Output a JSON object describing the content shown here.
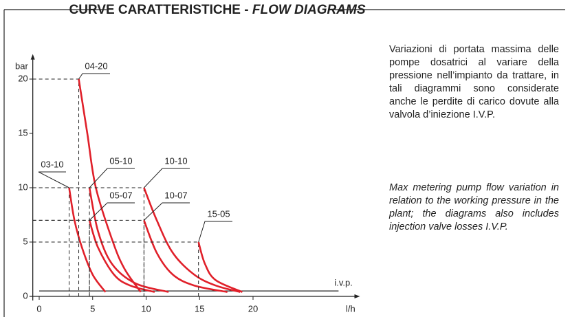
{
  "chart_data": {
    "type": "line",
    "title": "CURVE CARATTERISTICHE -",
    "title_italic": "FLOW DIAGRAMS",
    "y_label": "bar",
    "x_label": "l/h",
    "xlim": [
      -0.6,
      30
    ],
    "ylim": [
      0,
      22.3
    ],
    "xticks": [
      0,
      5,
      10,
      15,
      20
    ],
    "yticks": [
      0,
      5,
      10,
      15,
      20
    ],
    "reference_line": {
      "label": "i.v.p.",
      "y": 0.5,
      "x": [
        0,
        28
      ]
    },
    "series": [
      {
        "name": "03-10",
        "color": "#e0202a",
        "x": [
          2.8,
          3.3,
          4,
          5,
          6.2
        ],
        "values": [
          10,
          7,
          4.5,
          2,
          0.4
        ]
      },
      {
        "name": "04-20",
        "color": "#e0202a",
        "x": [
          3.7,
          4.5,
          5.3,
          6.9,
          8,
          9.5
        ],
        "values": [
          20,
          15,
          10,
          5,
          2.5,
          0.4
        ]
      },
      {
        "name": "05-10",
        "color": "#e0202a",
        "x": [
          4.7,
          5.5,
          6.8,
          9,
          12.1
        ],
        "values": [
          10,
          6,
          3,
          1.2,
          0.4
        ]
      },
      {
        "name": "05-07",
        "color": "#e0202a",
        "x": [
          4.7,
          5.5,
          7,
          8.5,
          10.8
        ],
        "values": [
          7,
          4.5,
          2,
          1,
          0.4
        ]
      },
      {
        "name": "10-10",
        "color": "#e0202a",
        "x": [
          9.8,
          11,
          12.5,
          14.5,
          16.5,
          18.8
        ],
        "values": [
          10,
          7,
          4,
          2,
          1,
          0.4
        ]
      },
      {
        "name": "10-07",
        "color": "#e0202a",
        "x": [
          9.8,
          11,
          12.5,
          14.5,
          17.6
        ],
        "values": [
          7,
          4,
          2,
          1,
          0.4
        ]
      },
      {
        "name": "15-05",
        "color": "#e0202a",
        "x": [
          14.9,
          15.5,
          16.5,
          19
        ],
        "values": [
          5,
          3,
          1.5,
          0.4
        ]
      }
    ]
  },
  "text": {
    "italian": "Variazioni di portata massima delle pompe dosatrici al variare della pressione nell’impianto da trattare, in tali diagrammi sono considerate anche le perdite di carico dovute alla valvola d’iniezione I.V.P.",
    "english": "Max metering pump flow variation in relation to the working pressure in the plant; the diagrams also includes injection valve losses I.V.P."
  }
}
